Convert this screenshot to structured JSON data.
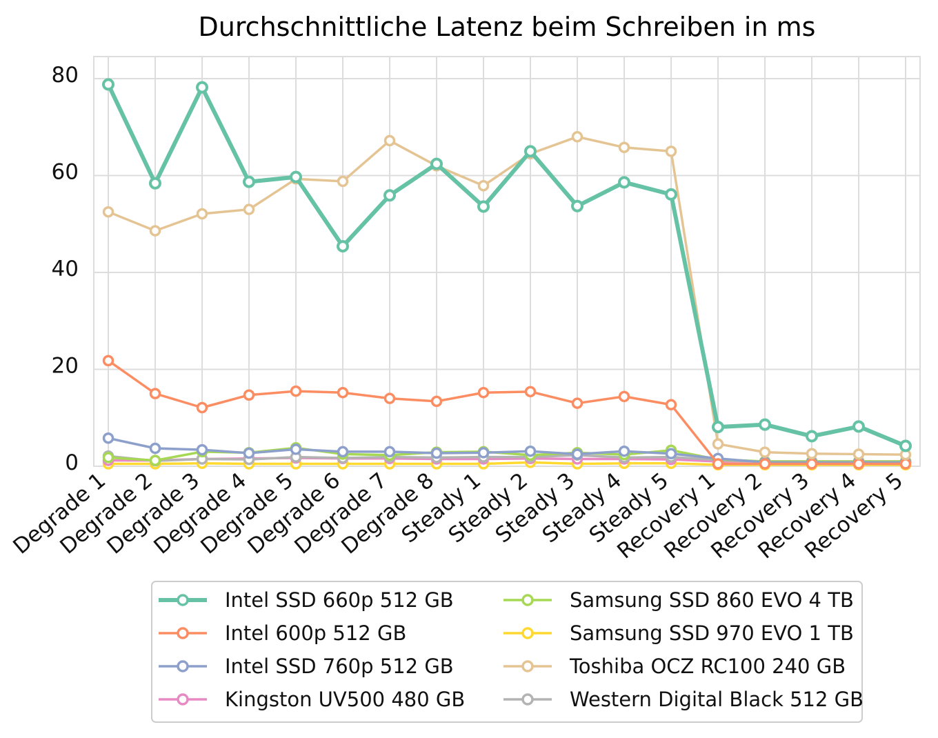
{
  "chart_data": {
    "type": "line",
    "title": "Durchschnittliche Latenz beim Schreiben in ms",
    "xlabel": "",
    "ylabel": "",
    "ylim": [
      0,
      80
    ],
    "yticks": [
      0,
      20,
      40,
      60,
      80
    ],
    "grid": true,
    "legend_position": "bottom",
    "categories": [
      "Degrade 1",
      "Degrade 2",
      "Degrade 3",
      "Degrade 4",
      "Degrade 5",
      "Degrade 6",
      "Degrade 7",
      "Degrade 8",
      "Steady 1",
      "Steady 2",
      "Steady 3",
      "Steady 4",
      "Steady 5",
      "Recovery 1",
      "Recovery 2",
      "Recovery 3",
      "Recovery 4",
      "Recovery 5"
    ],
    "series": [
      {
        "name": "Intel SSD 660p 512 GB",
        "color": "#66c2a5",
        "values": [
          78.8,
          58.4,
          78.2,
          58.7,
          59.7,
          45.4,
          55.9,
          62.4,
          53.6,
          65.0,
          53.7,
          58.6,
          56.1,
          8.1,
          8.6,
          6.2,
          8.2,
          4.2
        ]
      },
      {
        "name": "Intel 600p 512 GB",
        "color": "#fc8d62",
        "values": [
          21.8,
          15.0,
          12.1,
          14.7,
          15.5,
          15.2,
          14.0,
          13.4,
          15.2,
          15.4,
          13.0,
          14.4,
          12.7,
          0.5,
          0.5,
          0.5,
          0.5,
          0.5
        ]
      },
      {
        "name": "Intel SSD 760p 512 GB",
        "color": "#8da0cb",
        "values": [
          5.8,
          3.7,
          3.4,
          2.7,
          3.5,
          3.0,
          3.0,
          2.7,
          2.8,
          3.1,
          2.5,
          3.1,
          2.6,
          1.6,
          0.8,
          0.8,
          0.8,
          0.8
        ]
      },
      {
        "name": "Kingston UV500 480 GB",
        "color": "#e78ac3",
        "values": [
          1.2,
          1.2,
          1.5,
          1.6,
          1.7,
          1.6,
          1.6,
          1.5,
          1.5,
          1.6,
          1.5,
          1.5,
          1.4,
          1.0,
          1.0,
          1.0,
          1.0,
          1.0
        ]
      },
      {
        "name": "Samsung SSD 860 EVO 4 TB",
        "color": "#a6d854",
        "values": [
          1.8,
          1.2,
          3.0,
          2.8,
          3.8,
          2.5,
          2.3,
          2.9,
          3.0,
          2.3,
          2.8,
          2.4,
          3.3,
          1.4,
          1.0,
          1.0,
          1.0,
          1.0
        ]
      },
      {
        "name": "Samsung SSD 970 EVO 1 TB",
        "color": "#ffd92f",
        "values": [
          0.5,
          0.5,
          0.6,
          0.5,
          0.5,
          0.5,
          0.5,
          0.5,
          0.5,
          0.8,
          0.5,
          0.6,
          0.6,
          0.3,
          0.3,
          0.3,
          0.3,
          0.3
        ]
      },
      {
        "name": "Toshiba OCZ RC100 240 GB",
        "color": "#e5c494",
        "values": [
          52.5,
          48.6,
          52.1,
          53.0,
          59.3,
          58.8,
          67.2,
          62.0,
          57.9,
          64.5,
          68.0,
          65.8,
          65.0,
          4.6,
          2.9,
          2.6,
          2.5,
          2.4
        ]
      },
      {
        "name": "Western Digital Black 512 GB",
        "color": "#b3b3b3",
        "values": [
          2.1,
          1.1,
          1.5,
          1.4,
          1.9,
          1.7,
          1.9,
          1.8,
          1.9,
          1.9,
          2.3,
          1.8,
          1.9,
          1.3,
          0.9,
          0.9,
          0.9,
          0.9
        ]
      }
    ]
  }
}
